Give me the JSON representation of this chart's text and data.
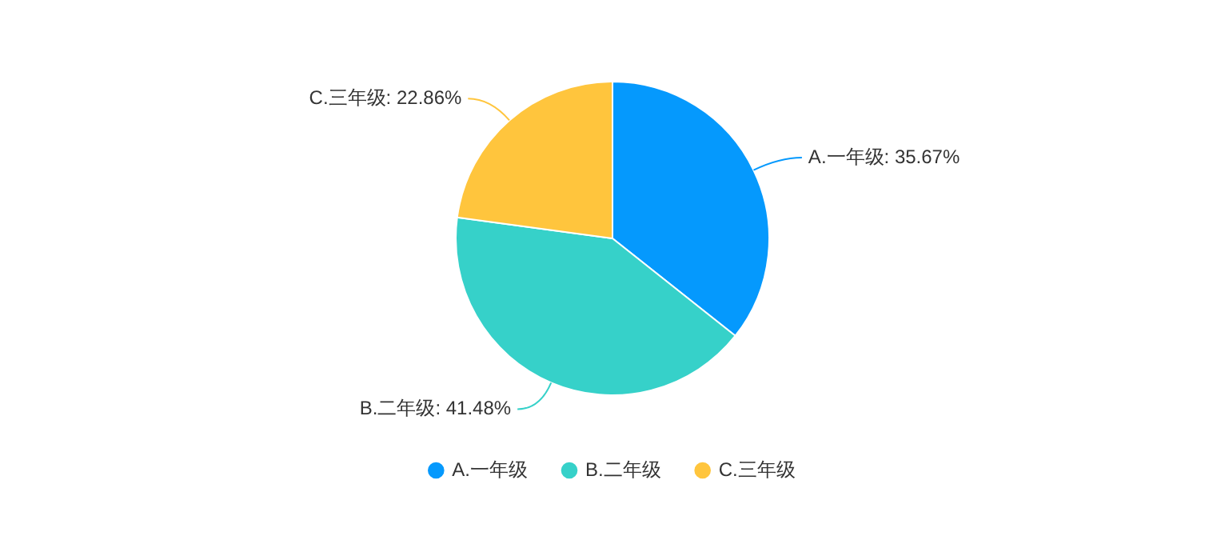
{
  "chart_data": {
    "type": "pie",
    "categories": [
      "A.一年级",
      "B.二年级",
      "C.三年级"
    ],
    "values": [
      35.67,
      41.48,
      22.86
    ],
    "colors": [
      "#0599fd",
      "#36d1c9",
      "#ffc53d"
    ],
    "value_labels": [
      "A.一年级: 35.67%",
      "B.二年级: 41.48%",
      "C.三年级: 22.86%"
    ],
    "legend": "bottom"
  }
}
